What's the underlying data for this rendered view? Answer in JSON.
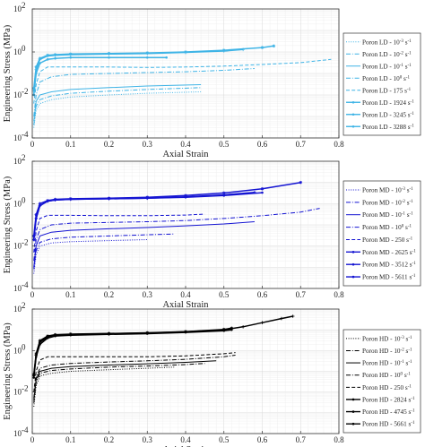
{
  "chart_data": [
    {
      "type": "line",
      "xlabel": "Axial Strain",
      "ylabel": "Engineering Stress (MPa)",
      "xlim": [
        0,
        0.8
      ],
      "ylim": [
        0.0001,
        100
      ],
      "yscale": "log",
      "x_ticks": [
        "0",
        "0.1",
        "0.2",
        "0.3",
        "0.4",
        "0.5",
        "0.6",
        "0.7",
        "0.8"
      ],
      "y_ticks": [
        {
          "base": "10",
          "exp": "-4"
        },
        {
          "base": "10",
          "exp": "-2"
        },
        {
          "base": "10",
          "exp": "0"
        },
        {
          "base": "10",
          "exp": "2"
        }
      ],
      "grid": true,
      "legend_position": "right",
      "color": "#3fb4e6",
      "series": [
        {
          "name": "Poron LD - 10",
          "exp": "-3",
          "unit_tail": "s",
          "unit_exp": "-1",
          "style": "dotted",
          "marker": "none",
          "x": [
            0.004,
            0.01,
            0.02,
            0.05,
            0.1,
            0.2,
            0.3,
            0.44
          ],
          "y": [
            0.0003,
            0.002,
            0.004,
            0.006,
            0.008,
            0.01,
            0.012,
            0.014
          ]
        },
        {
          "name": "Poron LD - 10",
          "exp": "-2",
          "unit_tail": "s",
          "unit_exp": "-1",
          "style": "dashdot",
          "marker": "none",
          "x": [
            0.004,
            0.01,
            0.02,
            0.05,
            0.1,
            0.2,
            0.3,
            0.44
          ],
          "y": [
            0.0004,
            0.003,
            0.006,
            0.009,
            0.012,
            0.015,
            0.018,
            0.022
          ]
        },
        {
          "name": "Poron LD - 10",
          "exp": "-1",
          "unit_tail": "s",
          "unit_exp": "-1",
          "style": "solid",
          "marker": "none",
          "x": [
            0.004,
            0.01,
            0.02,
            0.05,
            0.1,
            0.2,
            0.3,
            0.44
          ],
          "y": [
            0.0006,
            0.005,
            0.01,
            0.014,
            0.018,
            0.022,
            0.026,
            0.03
          ]
        },
        {
          "name": "Poron LD - 10",
          "exp": "0",
          "unit_tail": "s",
          "unit_exp": "-1",
          "style": "dashdot",
          "marker": "none",
          "x": [
            0.004,
            0.01,
            0.02,
            0.05,
            0.1,
            0.2,
            0.3,
            0.4,
            0.5,
            0.58
          ],
          "y": [
            0.001,
            0.01,
            0.04,
            0.07,
            0.09,
            0.1,
            0.11,
            0.12,
            0.14,
            0.17
          ]
        },
        {
          "name": "Poron LD - 175",
          "exp": "",
          "unit_tail": "s",
          "unit_exp": "-1",
          "style": "dashed",
          "marker": "none",
          "x": [
            0.004,
            0.01,
            0.02,
            0.04,
            0.1,
            0.2,
            0.3,
            0.4,
            0.5,
            0.6,
            0.7,
            0.78
          ],
          "y": [
            0.004,
            0.03,
            0.12,
            0.2,
            0.2,
            0.2,
            0.19,
            0.2,
            0.22,
            0.26,
            0.32,
            0.45
          ]
        },
        {
          "name": "Poron LD - 1924",
          "exp": "",
          "unit_tail": "s",
          "unit_exp": "-1",
          "style": "solid",
          "marker": "dot",
          "x": [
            0.004,
            0.01,
            0.02,
            0.04,
            0.06,
            0.1,
            0.2,
            0.3,
            0.35
          ],
          "y": [
            0.01,
            0.1,
            0.3,
            0.45,
            0.5,
            0.55,
            0.55,
            0.55,
            0.55
          ]
        },
        {
          "name": "Poron LD - 3245",
          "exp": "",
          "unit_tail": "s",
          "unit_exp": "-1",
          "style": "solid",
          "marker": "plus",
          "x": [
            0.004,
            0.01,
            0.02,
            0.04,
            0.06,
            0.1,
            0.2,
            0.3,
            0.4,
            0.5,
            0.55
          ],
          "y": [
            0.015,
            0.15,
            0.45,
            0.65,
            0.7,
            0.75,
            0.8,
            0.85,
            0.95,
            1.1,
            1.3
          ]
        },
        {
          "name": "Poron LD - 3288",
          "exp": "",
          "unit_tail": "s",
          "unit_exp": "-1",
          "style": "solid",
          "marker": "star",
          "x": [
            0.004,
            0.01,
            0.02,
            0.04,
            0.06,
            0.1,
            0.2,
            0.3,
            0.4,
            0.5,
            0.6,
            0.63
          ],
          "y": [
            0.02,
            0.2,
            0.5,
            0.7,
            0.75,
            0.8,
            0.85,
            0.9,
            1.0,
            1.2,
            1.6,
            1.9
          ]
        }
      ]
    },
    {
      "type": "line",
      "xlabel": "Axial Strain",
      "ylabel": "Engineering Stress (MPa)",
      "xlim": [
        0,
        0.8
      ],
      "ylim": [
        0.0001,
        100
      ],
      "yscale": "log",
      "x_ticks": [
        "0",
        "0.1",
        "0.2",
        "0.3",
        "0.4",
        "0.5",
        "0.6",
        "0.7",
        "0.8"
      ],
      "y_ticks": [
        {
          "base": "10",
          "exp": "-4"
        },
        {
          "base": "10",
          "exp": "-2"
        },
        {
          "base": "10",
          "exp": "0"
        },
        {
          "base": "10",
          "exp": "2"
        }
      ],
      "grid": true,
      "legend_position": "right",
      "color": "#1414d2",
      "series": [
        {
          "name": "Poron MD - 10",
          "exp": "-3",
          "unit_tail": "s",
          "unit_exp": "-1",
          "style": "dotted",
          "marker": "none",
          "x": [
            0.004,
            0.01,
            0.02,
            0.05,
            0.1,
            0.2,
            0.3
          ],
          "y": [
            0.0005,
            0.004,
            0.01,
            0.014,
            0.016,
            0.018,
            0.02
          ]
        },
        {
          "name": "Poron MD - 10",
          "exp": "-2",
          "unit_tail": "s",
          "unit_exp": "-1",
          "style": "dashdot",
          "marker": "none",
          "x": [
            0.004,
            0.01,
            0.02,
            0.05,
            0.1,
            0.2,
            0.3,
            0.37
          ],
          "y": [
            0.0008,
            0.006,
            0.015,
            0.022,
            0.026,
            0.03,
            0.034,
            0.037
          ]
        },
        {
          "name": "Poron MD - 10",
          "exp": "-1",
          "unit_tail": "s",
          "unit_exp": "-1",
          "style": "solid",
          "marker": "none",
          "x": [
            0.004,
            0.01,
            0.02,
            0.05,
            0.1,
            0.2,
            0.3,
            0.4,
            0.5,
            0.58
          ],
          "y": [
            0.001,
            0.01,
            0.03,
            0.045,
            0.055,
            0.065,
            0.075,
            0.09,
            0.11,
            0.14
          ]
        },
        {
          "name": "Poron MD - 10",
          "exp": "0",
          "unit_tail": "s",
          "unit_exp": "-1",
          "style": "dashdot",
          "marker": "none",
          "x": [
            0.004,
            0.01,
            0.02,
            0.05,
            0.1,
            0.2,
            0.3,
            0.4,
            0.5,
            0.6,
            0.7,
            0.75
          ],
          "y": [
            0.002,
            0.02,
            0.06,
            0.1,
            0.12,
            0.13,
            0.14,
            0.16,
            0.2,
            0.27,
            0.4,
            0.6
          ]
        },
        {
          "name": "Poron MD - 250",
          "exp": "",
          "unit_tail": "s",
          "unit_exp": "-1",
          "style": "dashed",
          "marker": "none",
          "x": [
            0.004,
            0.01,
            0.02,
            0.04,
            0.1,
            0.2,
            0.3,
            0.4,
            0.45
          ],
          "y": [
            0.005,
            0.05,
            0.2,
            0.28,
            0.28,
            0.27,
            0.27,
            0.29,
            0.32
          ]
        },
        {
          "name": "Poron MD - 2625",
          "exp": "",
          "unit_tail": "s",
          "unit_exp": "-1",
          "style": "solid",
          "marker": "dot",
          "x": [
            0.004,
            0.01,
            0.02,
            0.04,
            0.06,
            0.1,
            0.2,
            0.3,
            0.4,
            0.5,
            0.6
          ],
          "y": [
            0.02,
            0.2,
            0.8,
            1.3,
            1.5,
            1.6,
            1.7,
            1.8,
            2.0,
            2.4,
            3.3
          ]
        },
        {
          "name": "Poron MD - 3512",
          "exp": "",
          "unit_tail": "s",
          "unit_exp": "-1",
          "style": "solid",
          "marker": "plus",
          "x": [
            0.004,
            0.01,
            0.02,
            0.04,
            0.06,
            0.1,
            0.2,
            0.3,
            0.4,
            0.5,
            0.58
          ],
          "y": [
            0.02,
            0.2,
            0.8,
            1.3,
            1.5,
            1.6,
            1.7,
            1.8,
            2.1,
            2.6,
            3.4
          ]
        },
        {
          "name": "Poron MD - 5611",
          "exp": "",
          "unit_tail": "s",
          "unit_exp": "-1",
          "style": "solid",
          "marker": "star",
          "x": [
            0.004,
            0.01,
            0.02,
            0.04,
            0.06,
            0.1,
            0.2,
            0.3,
            0.4,
            0.5,
            0.6,
            0.7
          ],
          "y": [
            0.03,
            0.3,
            1.0,
            1.4,
            1.6,
            1.7,
            1.8,
            2.0,
            2.4,
            3.2,
            5.0,
            10.0
          ]
        }
      ]
    },
    {
      "type": "line",
      "xlabel": "Axial Strain",
      "ylabel": "Engineering Stress (MPa)",
      "xlim": [
        0,
        0.8
      ],
      "ylim": [
        0.0001,
        100
      ],
      "yscale": "log",
      "x_ticks": [
        "0",
        "0.1",
        "0.2",
        "0.3",
        "0.4",
        "0.5",
        "0.6",
        "0.7",
        "0.8"
      ],
      "y_ticks": [
        {
          "base": "10",
          "exp": "-4"
        },
        {
          "base": "10",
          "exp": "-2"
        },
        {
          "base": "10",
          "exp": "0"
        },
        {
          "base": "10",
          "exp": "2"
        }
      ],
      "grid": true,
      "legend_position": "right",
      "color": "#000000",
      "series": [
        {
          "name": "Poron HD - 10",
          "exp": "-3",
          "unit_tail": "s",
          "unit_exp": "-1",
          "style": "dotted",
          "marker": "none",
          "x": [
            0.004,
            0.01,
            0.02,
            0.05,
            0.1,
            0.2,
            0.3,
            0.37
          ],
          "y": [
            0.002,
            0.02,
            0.06,
            0.08,
            0.1,
            0.12,
            0.14,
            0.16
          ]
        },
        {
          "name": "Poron HD - 10",
          "exp": "-2",
          "unit_tail": "s",
          "unit_exp": "-1",
          "style": "dashdot",
          "marker": "none",
          "x": [
            0.004,
            0.01,
            0.02,
            0.05,
            0.1,
            0.2,
            0.3,
            0.4,
            0.45
          ],
          "y": [
            0.003,
            0.03,
            0.08,
            0.11,
            0.13,
            0.16,
            0.18,
            0.21,
            0.24
          ]
        },
        {
          "name": "Poron HD - 10",
          "exp": "-1",
          "unit_tail": "s",
          "unit_exp": "-1",
          "style": "solid",
          "marker": "none",
          "x": [
            0.004,
            0.01,
            0.02,
            0.05,
            0.1,
            0.2,
            0.3,
            0.4,
            0.48
          ],
          "y": [
            0.004,
            0.04,
            0.1,
            0.14,
            0.17,
            0.2,
            0.23,
            0.27,
            0.32
          ]
        },
        {
          "name": "Poron HD - 10",
          "exp": "0",
          "unit_tail": "s",
          "unit_exp": "-1",
          "style": "dashdot",
          "marker": "none",
          "x": [
            0.004,
            0.01,
            0.02,
            0.05,
            0.1,
            0.2,
            0.3,
            0.4,
            0.5,
            0.53
          ],
          "y": [
            0.005,
            0.05,
            0.14,
            0.2,
            0.24,
            0.28,
            0.32,
            0.38,
            0.5,
            0.6
          ]
        },
        {
          "name": "Poron HD - 250",
          "exp": "",
          "unit_tail": "s",
          "unit_exp": "-1",
          "style": "dashed",
          "marker": "none",
          "x": [
            0.004,
            0.01,
            0.02,
            0.04,
            0.1,
            0.2,
            0.3,
            0.4,
            0.5,
            0.53
          ],
          "y": [
            0.01,
            0.1,
            0.35,
            0.5,
            0.5,
            0.5,
            0.5,
            0.55,
            0.7,
            0.8
          ]
        },
        {
          "name": "Poron HD - 2824",
          "exp": "",
          "unit_tail": "s",
          "unit_exp": "-1",
          "style": "solid",
          "marker": "dot",
          "x": [
            0.004,
            0.01,
            0.02,
            0.04,
            0.06,
            0.1,
            0.2,
            0.3,
            0.4,
            0.5,
            0.52
          ],
          "y": [
            0.05,
            0.5,
            2.0,
            4.0,
            5.0,
            5.5,
            6.0,
            6.5,
            7.5,
            9.0,
            10.0
          ]
        },
        {
          "name": "Poron HD - 4745",
          "exp": "",
          "unit_tail": "s",
          "unit_exp": "-1",
          "style": "solid",
          "marker": "plus",
          "x": [
            0.004,
            0.01,
            0.02,
            0.04,
            0.06,
            0.1,
            0.2,
            0.3,
            0.4,
            0.5,
            0.55,
            0.6,
            0.65,
            0.68
          ],
          "y": [
            0.06,
            0.6,
            2.5,
            4.5,
            5.5,
            6.0,
            6.5,
            7.0,
            8.0,
            10.0,
            14.0,
            22.0,
            35.0,
            45.0
          ]
        },
        {
          "name": "Poron HD - 5661",
          "exp": "",
          "unit_tail": "s",
          "unit_exp": "-1",
          "style": "solid",
          "marker": "star",
          "x": [
            0.004,
            0.01,
            0.02,
            0.04,
            0.06,
            0.1,
            0.2,
            0.3,
            0.4,
            0.5,
            0.52
          ],
          "y": [
            0.07,
            0.7,
            3.0,
            5.0,
            5.8,
            6.2,
            6.6,
            7.2,
            8.2,
            10.5,
            12.0
          ]
        }
      ]
    }
  ]
}
